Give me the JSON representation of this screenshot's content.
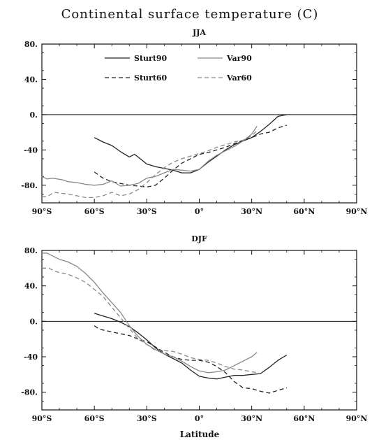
{
  "figure": {
    "title": "Continental surface temperature (C)",
    "xlabel": "Latitude"
  },
  "chart_data": [
    {
      "type": "line",
      "title": "JJA",
      "xlabel": "",
      "ylabel": "",
      "xlim": [
        -90,
        90
      ],
      "ylim": [
        -100,
        80
      ],
      "x_ticks": [
        {
          "value": -90,
          "label": "90°S"
        },
        {
          "value": -60,
          "label": "60°S"
        },
        {
          "value": -30,
          "label": "30°S"
        },
        {
          "value": 0,
          "label": "0°"
        },
        {
          "value": 30,
          "label": "30°N"
        },
        {
          "value": 60,
          "label": "60°N"
        },
        {
          "value": 90,
          "label": "90°N"
        }
      ],
      "y_ticks": [
        {
          "value": 80,
          "label": "80."
        },
        {
          "value": 40,
          "label": "40."
        },
        {
          "value": 0,
          "label": "0."
        },
        {
          "value": -40,
          "label": "-40"
        },
        {
          "value": -80,
          "label": "-80."
        }
      ],
      "zero_line": true,
      "legend_position": "top",
      "series": [
        {
          "name": "Sturt90",
          "color": "#222222",
          "dash": "solid",
          "x": [
            -60,
            -55,
            -50,
            -45,
            -40,
            -37,
            -35,
            -30,
            -25,
            -20,
            -15,
            -10,
            -5,
            0,
            5,
            10,
            15,
            20,
            25,
            30,
            35,
            40,
            45,
            50
          ],
          "y": [
            -26,
            -31,
            -35,
            -42,
            -48,
            -45,
            -48,
            -56,
            -59,
            -61,
            -63,
            -66,
            -66,
            -62,
            -54,
            -47,
            -40,
            -34,
            -30,
            -26,
            -19,
            -11,
            -2,
            0
          ]
        },
        {
          "name": "Sturt60",
          "color": "#222222",
          "dash": "dashed",
          "x": [
            -60,
            -55,
            -50,
            -45,
            -40,
            -35,
            -30,
            -25,
            -20,
            -15,
            -10,
            -5,
            0,
            5,
            10,
            15,
            20,
            25,
            30,
            35,
            40,
            45,
            50
          ],
          "y": [
            -65,
            -72,
            -76,
            -78,
            -80,
            -81,
            -82,
            -80,
            -72,
            -63,
            -55,
            -50,
            -45,
            -43,
            -40,
            -37,
            -33,
            -29,
            -26,
            -22,
            -20,
            -15,
            -12
          ]
        },
        {
          "name": "Var90",
          "color": "#888888",
          "dash": "solid",
          "x": [
            -90,
            -87,
            -84,
            -81,
            -78,
            -75,
            -70,
            -65,
            -60,
            -55,
            -50,
            -45,
            -40,
            -35,
            -30,
            -25,
            -20,
            -15,
            -10,
            -5,
            0,
            5,
            10,
            15,
            20,
            25,
            30,
            33
          ],
          "y": [
            -70,
            -73,
            -72,
            -73,
            -74,
            -76,
            -77,
            -79,
            -80,
            -79,
            -75,
            -81,
            -80,
            -78,
            -72,
            -70,
            -66,
            -62,
            -63,
            -64,
            -62,
            -53,
            -46,
            -41,
            -36,
            -30,
            -22,
            -13
          ]
        },
        {
          "name": "Var60",
          "color": "#888888",
          "dash": "dashed",
          "x": [
            -90,
            -87,
            -83,
            -80,
            -75,
            -70,
            -65,
            -60,
            -55,
            -50,
            -45,
            -40,
            -35,
            -30,
            -25,
            -20,
            -15,
            -10,
            -5,
            0,
            5,
            10,
            15,
            20,
            25,
            30,
            33
          ],
          "y": [
            -93,
            -93,
            -88,
            -89,
            -90,
            -92,
            -94,
            -94,
            -92,
            -88,
            -92,
            -90,
            -85,
            -77,
            -68,
            -60,
            -54,
            -50,
            -47,
            -44,
            -41,
            -37,
            -34,
            -31,
            -29,
            -24,
            -18
          ]
        }
      ]
    },
    {
      "type": "line",
      "title": "DJF",
      "xlabel": "Latitude",
      "ylabel": "",
      "xlim": [
        -90,
        90
      ],
      "ylim": [
        -100,
        80
      ],
      "x_ticks": [
        {
          "value": -90,
          "label": "90°S"
        },
        {
          "value": -60,
          "label": "60°S"
        },
        {
          "value": -30,
          "label": "30°S"
        },
        {
          "value": 0,
          "label": "0°"
        },
        {
          "value": 30,
          "label": "30°N"
        },
        {
          "value": 60,
          "label": "60°N"
        },
        {
          "value": 90,
          "label": "90°N"
        }
      ],
      "y_ticks": [
        {
          "value": 80,
          "label": "80."
        },
        {
          "value": 40,
          "label": "40."
        },
        {
          "value": 0,
          "label": "0."
        },
        {
          "value": -40,
          "label": "-40"
        },
        {
          "value": -80,
          "label": "-80."
        }
      ],
      "zero_line": true,
      "series": [
        {
          "name": "Sturt90",
          "color": "#222222",
          "dash": "solid",
          "x": [
            -60,
            -55,
            -50,
            -45,
            -40,
            -35,
            -30,
            -25,
            -20,
            -15,
            -10,
            -5,
            0,
            5,
            10,
            15,
            20,
            25,
            30,
            35,
            40,
            45,
            50
          ],
          "y": [
            9,
            6,
            3,
            -1,
            -6,
            -13,
            -21,
            -30,
            -37,
            -42,
            -47,
            -55,
            -62,
            -64,
            -65,
            -63,
            -61,
            -61,
            -60,
            -59,
            -52,
            -44,
            -38
          ]
        },
        {
          "name": "Sturt60",
          "color": "#222222",
          "dash": "dashed",
          "x": [
            -60,
            -57,
            -50,
            -45,
            -40,
            -35,
            -30,
            -25,
            -20,
            -15,
            -10,
            -5,
            0,
            5,
            10,
            15,
            20,
            25,
            30,
            35,
            40,
            45,
            50
          ],
          "y": [
            -5,
            -9,
            -12,
            -14,
            -16,
            -20,
            -23,
            -29,
            -35,
            -40,
            -43,
            -44,
            -44,
            -46,
            -51,
            -58,
            -68,
            -75,
            -76,
            -79,
            -81,
            -78,
            -75
          ]
        },
        {
          "name": "Var90",
          "color": "#888888",
          "dash": "solid",
          "x": [
            -90,
            -87,
            -83,
            -80,
            -75,
            -70,
            -65,
            -60,
            -55,
            -50,
            -45,
            -40,
            -35,
            -30,
            -25,
            -20,
            -15,
            -10,
            -5,
            0,
            5,
            10,
            15,
            20,
            25,
            30,
            33
          ],
          "y": [
            77,
            77,
            73,
            70,
            67,
            62,
            54,
            44,
            32,
            21,
            10,
            -5,
            -17,
            -26,
            -32,
            -37,
            -40,
            -45,
            -51,
            -56,
            -58,
            -57,
            -55,
            -50,
            -45,
            -40,
            -35
          ]
        },
        {
          "name": "Var60",
          "color": "#888888",
          "dash": "dashed",
          "x": [
            -90,
            -86,
            -83,
            -80,
            -75,
            -70,
            -65,
            -60,
            -55,
            -50,
            -45,
            -40,
            -35,
            -30,
            -25,
            -20,
            -15,
            -10,
            -5,
            0,
            5,
            10,
            15,
            20,
            25,
            30,
            33
          ],
          "y": [
            60,
            60,
            57,
            55,
            53,
            49,
            44,
            36,
            28,
            16,
            4,
            -8,
            -20,
            -26,
            -33,
            -33,
            -34,
            -37,
            -41,
            -43,
            -44,
            -47,
            -51,
            -54,
            -55,
            -57,
            -58
          ]
        }
      ]
    }
  ]
}
